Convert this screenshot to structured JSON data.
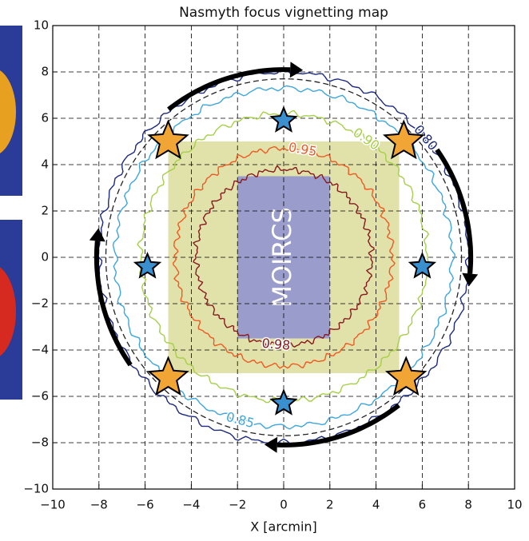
{
  "chart_data": {
    "type": "contour",
    "title": "Nasmyth focus vignetting map",
    "xlabel": "X [arcmin]",
    "xlim": [
      -10,
      10
    ],
    "ylim": [
      -10,
      10
    ],
    "xticks": [
      {
        "value": -10,
        "label": "−10"
      },
      {
        "value": -8,
        "label": "−8"
      },
      {
        "value": -6,
        "label": "−6"
      },
      {
        "value": -4,
        "label": "−4"
      },
      {
        "value": -2,
        "label": "−2"
      },
      0,
      2,
      4,
      6,
      8,
      10
    ],
    "yticks": [
      {
        "value": -10,
        "label": "−10"
      },
      {
        "value": -8,
        "label": "−8"
      },
      {
        "value": -6,
        "label": "−6"
      },
      {
        "value": -4,
        "label": "−4"
      },
      {
        "value": -2,
        "label": "−2"
      },
      0,
      2,
      4,
      6,
      8,
      10
    ],
    "grid": true,
    "contours": {
      "levels": [
        0.8,
        0.85,
        0.9,
        0.95,
        0.98
      ],
      "value_labels": [
        "0.80",
        "0.85",
        "0.90",
        "0.95",
        "0.98"
      ],
      "colors": [
        "#1c2a80",
        "#3ea6dc",
        "#a6cf4a",
        "#ef5a22",
        "#861a1e"
      ],
      "radii": [
        8,
        7.3,
        6.2,
        4.7,
        3.8
      ]
    },
    "reference_circle": {
      "radius": 7.7,
      "color": "#222222"
    },
    "regions": [
      {
        "x0": -5,
        "x1": 5,
        "y0": -5,
        "y1": 5,
        "color": "#c8c864"
      },
      {
        "label": "MOIRCS",
        "x0": -2,
        "x1": 2,
        "y0": -3.5,
        "y1": 3.5,
        "color": "#9a9ccb"
      }
    ],
    "markers": [
      {
        "color": "#f0a535",
        "x": [
          -5,
          5.2,
          -5,
          5.3
        ],
        "y": [
          5,
          5,
          -5.2,
          -5.2
        ]
      },
      {
        "color": "#3a8fcf",
        "x": [
          0,
          -5.9,
          6,
          0
        ],
        "y": [
          5.9,
          -0.4,
          -0.4,
          -6.3
        ]
      }
    ]
  }
}
